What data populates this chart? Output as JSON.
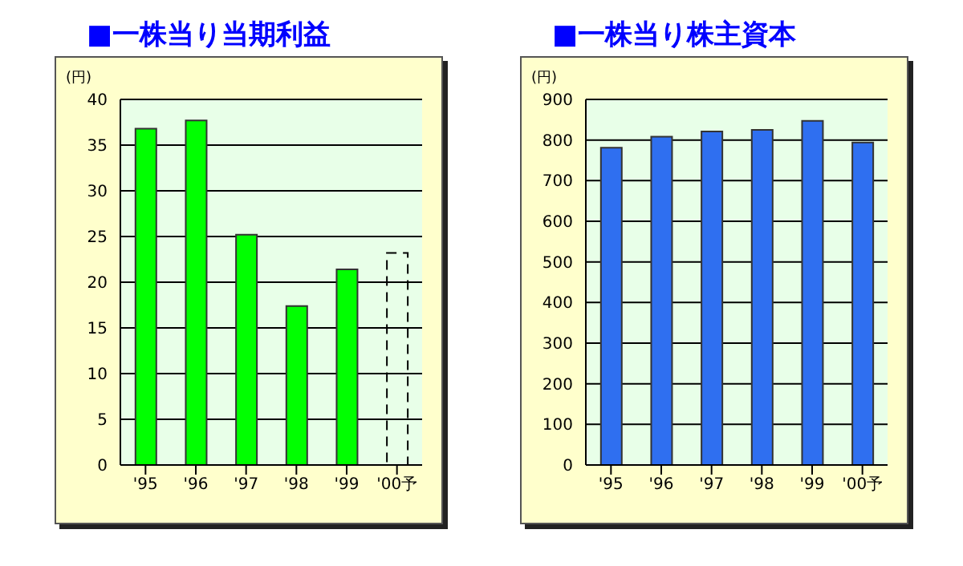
{
  "chart_data": [
    {
      "type": "bar",
      "title": "■一株当り当期利益",
      "ylabel": "(円)",
      "categories": [
        "'95",
        "'96",
        "'97",
        "'98",
        "'99",
        "'00予"
      ],
      "stacked": true,
      "series": [
        {
          "color": "#00ff00",
          "values": [
            36.8,
            37.7,
            25.2,
            17.4,
            21.4,
            null
          ]
        },
        {
          "color": "#000000",
          "line_style": "dashed",
          "values": [
            null,
            null,
            null,
            null,
            null,
            23.2
          ]
        }
      ],
      "ylim": [
        0,
        40
      ],
      "yticks": [
        0,
        5,
        10,
        15,
        20,
        25,
        30,
        35,
        40
      ],
      "grid": "y"
    },
    {
      "type": "bar",
      "title": "■一株当り株主資本",
      "ylabel": "(円)",
      "categories": [
        "'95",
        "'96",
        "'97",
        "'98",
        "'99",
        "'00予"
      ],
      "series": [
        {
          "color": "#2f6ff0",
          "values": [
            781,
            808,
            821,
            825,
            847,
            794
          ]
        }
      ],
      "ylim": [
        0,
        900
      ],
      "yticks": [
        0,
        100,
        200,
        300,
        400,
        500,
        600,
        700,
        800,
        900
      ],
      "grid": "y"
    }
  ]
}
